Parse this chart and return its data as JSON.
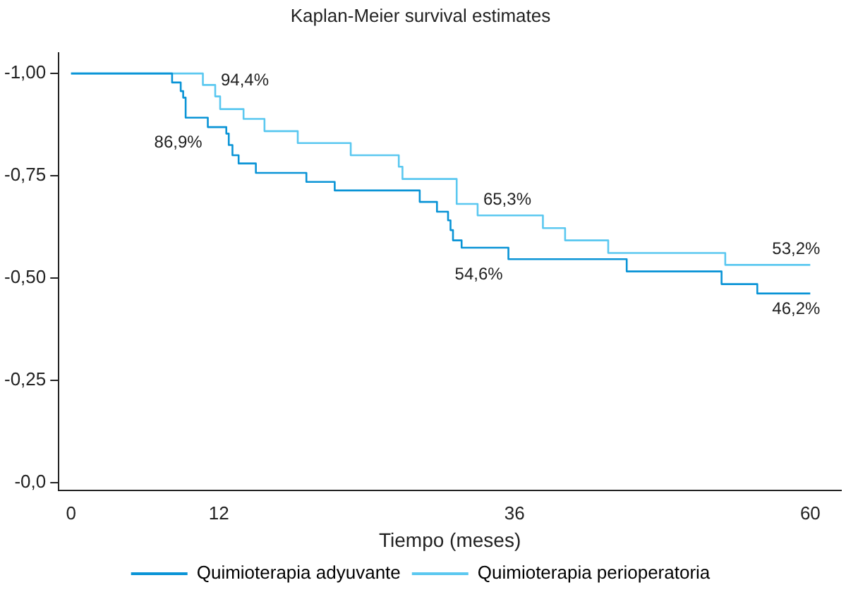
{
  "chart_data": {
    "type": "step",
    "title": "Kaplan-Meier survival estimates",
    "xlabel": "Tiempo (meses)",
    "xlim": [
      -1,
      62.5
    ],
    "xticks": [
      0,
      12,
      36,
      60
    ],
    "ylim": [
      0.02,
      -1.05
    ],
    "yticks": [
      {
        "value": -1,
        "label": "-1,00"
      },
      {
        "value": -0.75,
        "label": "-0,75"
      },
      {
        "value": -0.5,
        "label": "-0,50"
      },
      {
        "value": -0.25,
        "label": "-0,25"
      },
      {
        "value": 0,
        "label": "-0,0"
      }
    ],
    "grid": false,
    "legend": "bottom",
    "marker": "none",
    "line_style": "solid",
    "series": [
      {
        "name": "Quimioterapia adyuvante",
        "color": "#0a94d6",
        "x": [
          0,
          8.2,
          8.9,
          9.1,
          9.3,
          11.1,
          12.6,
          12.8,
          13.1,
          13.6,
          15.0,
          19.1,
          21.4,
          28.3,
          29.7,
          30.6,
          30.8,
          31.0,
          31.7,
          35.5,
          45.1,
          52.8,
          55.7,
          60
        ],
        "values": [
          -1,
          -0.978,
          -0.957,
          -0.941,
          -0.892,
          -0.869,
          -0.853,
          -0.825,
          -0.8,
          -0.78,
          -0.757,
          -0.735,
          -0.714,
          -0.686,
          -0.662,
          -0.641,
          -0.617,
          -0.592,
          -0.574,
          -0.546,
          -0.516,
          -0.485,
          -0.462,
          -0.462
        ]
      },
      {
        "name": "Quimioterapia perioperatoria",
        "color": "#5bc8f0",
        "x": [
          0,
          10.7,
          11.7,
          12.1,
          14.0,
          15.7,
          18.4,
          22.7,
          26.6,
          26.9,
          31.3,
          33.0,
          38.3,
          40.1,
          43.6,
          53.1,
          60
        ],
        "values": [
          -1,
          -0.972,
          -0.944,
          -0.913,
          -0.889,
          -0.859,
          -0.83,
          -0.8,
          -0.772,
          -0.742,
          -0.681,
          -0.653,
          -0.622,
          -0.592,
          -0.561,
          -0.532,
          -0.532
        ]
      }
    ],
    "annotations": [
      {
        "text": "94,4%",
        "x": 11.7,
        "y": -0.944
      },
      {
        "text": "86,9%",
        "x": 11.1,
        "y": -0.869
      },
      {
        "text": "65,3%",
        "x": 33.0,
        "y": -0.653
      },
      {
        "text": "54,6%",
        "x": 35.5,
        "y": -0.546
      },
      {
        "text": "53,2%",
        "x": 60,
        "y": -0.532
      },
      {
        "text": "46,2%",
        "x": 60,
        "y": -0.462
      }
    ]
  }
}
